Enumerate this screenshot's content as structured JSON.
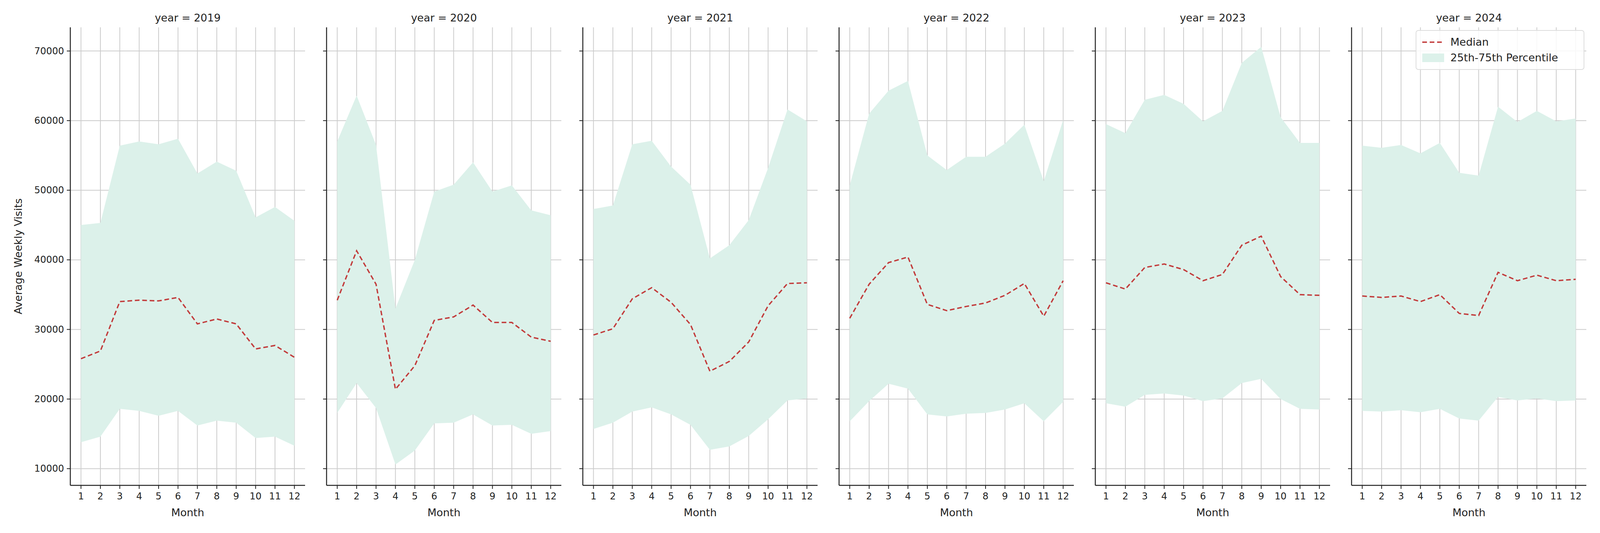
{
  "chart_data": [
    {
      "type": "line",
      "title": "year = 2019",
      "x_label": "Month",
      "y_label": "Average Weekly Visits",
      "x": [
        1,
        2,
        3,
        4,
        5,
        6,
        7,
        8,
        9,
        10,
        11,
        12
      ],
      "xlim": [
        0.45,
        12.55
      ],
      "xticks": [
        1,
        2,
        3,
        4,
        5,
        6,
        7,
        8,
        9,
        10,
        11,
        12
      ],
      "ylim": [
        7600,
        73400
      ],
      "yticks": [
        10000,
        20000,
        30000,
        40000,
        50000,
        60000,
        70000
      ],
      "grid": true,
      "series": [
        {
          "type": "line",
          "line_style": "dashed",
          "color": "#c23b3b",
          "values": [
            25800,
            26900,
            34000,
            34200,
            34100,
            34600,
            30800,
            31500,
            30800,
            27200,
            27700,
            26000
          ]
        },
        {
          "type": "area",
          "color": "#dcf1ea",
          "lower": [
            13800,
            14600,
            18600,
            18300,
            17600,
            18300,
            16200,
            16900,
            16600,
            14400,
            14600,
            13300
          ],
          "upper": [
            45000,
            45300,
            56400,
            57000,
            56600,
            57400,
            52400,
            54100,
            52800,
            46100,
            47600,
            45600
          ]
        }
      ]
    },
    {
      "type": "line",
      "title": "year = 2020",
      "x_label": "Month",
      "tick_labels": "x",
      "x": [
        1,
        2,
        3,
        4,
        5,
        6,
        7,
        8,
        9,
        10,
        11,
        12
      ],
      "xlim": [
        0.45,
        12.55
      ],
      "xticks": [
        1,
        2,
        3,
        4,
        5,
        6,
        7,
        8,
        9,
        10,
        11,
        12
      ],
      "ylim": [
        7600,
        73400
      ],
      "yticks": [
        10000,
        20000,
        30000,
        40000,
        50000,
        60000,
        70000
      ],
      "grid": true,
      "series": [
        {
          "type": "line",
          "line_style": "dashed",
          "color": "#c23b3b",
          "values": [
            34200,
            41300,
            36500,
            21400,
            24800,
            31300,
            31800,
            33500,
            31000,
            31000,
            28900,
            28300
          ]
        },
        {
          "type": "area",
          "color": "#dcf1ea",
          "lower": [
            18000,
            22300,
            18700,
            10600,
            12600,
            16500,
            16600,
            17800,
            16200,
            16300,
            15000,
            15400
          ],
          "upper": [
            57000,
            63600,
            56500,
            33000,
            40000,
            49800,
            50800,
            54000,
            49800,
            50700,
            47100,
            46400
          ]
        }
      ]
    },
    {
      "type": "line",
      "title": "year = 2021",
      "x_label": "Month",
      "tick_labels": "x",
      "x": [
        1,
        2,
        3,
        4,
        5,
        6,
        7,
        8,
        9,
        10,
        11,
        12
      ],
      "xlim": [
        0.45,
        12.55
      ],
      "xticks": [
        1,
        2,
        3,
        4,
        5,
        6,
        7,
        8,
        9,
        10,
        11,
        12
      ],
      "ylim": [
        7600,
        73400
      ],
      "yticks": [
        10000,
        20000,
        30000,
        40000,
        50000,
        60000,
        70000
      ],
      "grid": true,
      "series": [
        {
          "type": "line",
          "line_style": "dashed",
          "color": "#c23b3b",
          "values": [
            29200,
            30100,
            34400,
            36000,
            33900,
            30700,
            24000,
            25400,
            28200,
            33400,
            36600,
            36700
          ]
        },
        {
          "type": "area",
          "color": "#dcf1ea",
          "lower": [
            15700,
            16600,
            18200,
            18800,
            17800,
            16300,
            12700,
            13200,
            14700,
            17100,
            19800,
            20100
          ],
          "upper": [
            47300,
            47800,
            56600,
            57100,
            53400,
            50800,
            40200,
            42100,
            45700,
            53200,
            61600,
            59900
          ]
        }
      ]
    },
    {
      "type": "line",
      "title": "year = 2022",
      "x_label": "Month",
      "tick_labels": "x",
      "x": [
        1,
        2,
        3,
        4,
        5,
        6,
        7,
        8,
        9,
        10,
        11,
        12
      ],
      "xlim": [
        0.45,
        12.55
      ],
      "xticks": [
        1,
        2,
        3,
        4,
        5,
        6,
        7,
        8,
        9,
        10,
        11,
        12
      ],
      "ylim": [
        7600,
        73400
      ],
      "yticks": [
        10000,
        20000,
        30000,
        40000,
        50000,
        60000,
        70000
      ],
      "grid": true,
      "series": [
        {
          "type": "line",
          "line_style": "dashed",
          "color": "#c23b3b",
          "values": [
            31600,
            36500,
            39600,
            40400,
            33600,
            32700,
            33300,
            33800,
            34900,
            36600,
            31900,
            37000
          ]
        },
        {
          "type": "area",
          "color": "#dcf1ea",
          "lower": [
            16800,
            19700,
            22200,
            21500,
            17800,
            17500,
            17900,
            18000,
            18500,
            19400,
            16800,
            19600
          ],
          "upper": [
            50700,
            61000,
            64300,
            65700,
            55000,
            52900,
            54800,
            54800,
            56700,
            59400,
            51300,
            60100
          ]
        }
      ]
    },
    {
      "type": "line",
      "title": "year = 2023",
      "x_label": "Month",
      "tick_labels": "x",
      "x": [
        1,
        2,
        3,
        4,
        5,
        6,
        7,
        8,
        9,
        10,
        11,
        12
      ],
      "xlim": [
        0.45,
        12.55
      ],
      "xticks": [
        1,
        2,
        3,
        4,
        5,
        6,
        7,
        8,
        9,
        10,
        11,
        12
      ],
      "ylim": [
        7600,
        73400
      ],
      "yticks": [
        10000,
        20000,
        30000,
        40000,
        50000,
        60000,
        70000
      ],
      "grid": true,
      "series": [
        {
          "type": "line",
          "line_style": "dashed",
          "color": "#c23b3b",
          "values": [
            36700,
            35800,
            38900,
            39400,
            38600,
            37000,
            37900,
            42100,
            43400,
            37600,
            35000,
            34900
          ]
        },
        {
          "type": "area",
          "color": "#dcf1ea",
          "lower": [
            19400,
            18900,
            20600,
            20800,
            20500,
            19700,
            20100,
            22300,
            22900,
            20000,
            18600,
            18500
          ],
          "upper": [
            59500,
            58200,
            63000,
            63700,
            62400,
            59900,
            61400,
            68300,
            70600,
            60500,
            56800,
            56800
          ]
        }
      ]
    },
    {
      "type": "line",
      "title": "year = 2024",
      "x_label": "Month",
      "tick_labels": "x",
      "legend": "upper right",
      "x": [
        1,
        2,
        3,
        4,
        5,
        6,
        7,
        8,
        9,
        10,
        11,
        12
      ],
      "xlim": [
        0.45,
        12.55
      ],
      "xticks": [
        1,
        2,
        3,
        4,
        5,
        6,
        7,
        8,
        9,
        10,
        11,
        12
      ],
      "ylim": [
        7600,
        73400
      ],
      "yticks": [
        10000,
        20000,
        30000,
        40000,
        50000,
        60000,
        70000
      ],
      "grid": true,
      "series": [
        {
          "name": "Median",
          "type": "line",
          "line_style": "dashed",
          "color": "#c23b3b",
          "values": [
            34800,
            34600,
            34800,
            34000,
            35000,
            32300,
            32000,
            38200,
            37000,
            37800,
            37000,
            37200
          ]
        },
        {
          "name": "25th-75th Percentile",
          "type": "area",
          "color": "#dcf1ea",
          "lower": [
            18300,
            18200,
            18400,
            18100,
            18600,
            17200,
            16900,
            20300,
            19800,
            20100,
            19700,
            19800
          ],
          "upper": [
            56400,
            56100,
            56500,
            55300,
            56800,
            52500,
            52100,
            62000,
            59800,
            61400,
            59900,
            60300
          ]
        }
      ]
    }
  ]
}
